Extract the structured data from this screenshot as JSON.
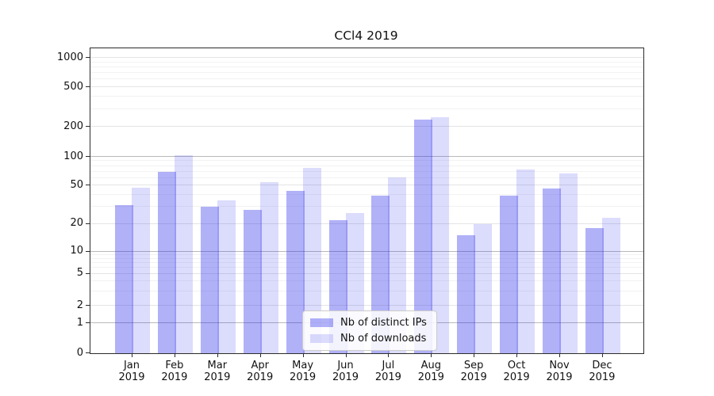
{
  "chart_data": {
    "type": "bar",
    "title": "CCl4 2019",
    "categories": [
      "Jan 2019",
      "Feb 2019",
      "Mar 2019",
      "Apr 2019",
      "May 2019",
      "Jun 2019",
      "Jul 2019",
      "Aug 2019",
      "Sep 2019",
      "Oct 2019",
      "Nov 2019",
      "Dec 2019"
    ],
    "x_tick_months": [
      "Jan",
      "Feb",
      "Mar",
      "Apr",
      "May",
      "Jun",
      "Jul",
      "Aug",
      "Sep",
      "Oct",
      "Nov",
      "Dec"
    ],
    "x_tick_year": "2019",
    "series": [
      {
        "name": "Nb of distinct IPs",
        "color": "rgba(40,40,235,0.365)",
        "solid_color": "#a7a7f0",
        "values": [
          31,
          70,
          30,
          28,
          44,
          22,
          39,
          235,
          15,
          39,
          46,
          18
        ]
      },
      {
        "name": "Nb of downloads",
        "color": "rgba(40,40,235,0.16)",
        "solid_color": "#d8d8f5",
        "values": [
          47,
          103,
          35,
          54,
          77,
          26,
          61,
          248,
          20,
          74,
          67,
          23
        ]
      }
    ],
    "yscale": "symlog",
    "yticks": [
      0,
      1,
      2,
      5,
      10,
      20,
      50,
      100,
      200,
      500,
      1000
    ],
    "ylim": [
      0,
      1300
    ],
    "grid": true,
    "legend_position": "lower center"
  }
}
